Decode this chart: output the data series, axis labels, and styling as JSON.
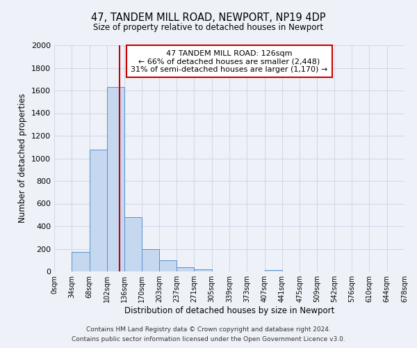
{
  "title": "47, TANDEM MILL ROAD, NEWPORT, NP19 4DP",
  "subtitle": "Size of property relative to detached houses in Newport",
  "xlabel": "Distribution of detached houses by size in Newport",
  "ylabel": "Number of detached properties",
  "bar_edges": [
    0,
    34,
    68,
    102,
    136,
    170,
    203,
    237,
    271,
    305,
    339,
    373,
    407,
    441,
    475,
    509,
    542,
    576,
    610,
    644,
    678
  ],
  "bar_values": [
    0,
    170,
    1080,
    1630,
    480,
    200,
    100,
    35,
    20,
    0,
    0,
    0,
    15,
    0,
    0,
    0,
    0,
    0,
    0,
    0
  ],
  "bar_color": "#c5d8f0",
  "bar_edge_color": "#5b8fc9",
  "property_line_x": 126,
  "property_line_color": "#cc0000",
  "ylim": [
    0,
    2000
  ],
  "yticks": [
    0,
    200,
    400,
    600,
    800,
    1000,
    1200,
    1400,
    1600,
    1800,
    2000
  ],
  "xtick_labels": [
    "0sqm",
    "34sqm",
    "68sqm",
    "102sqm",
    "136sqm",
    "170sqm",
    "203sqm",
    "237sqm",
    "271sqm",
    "305sqm",
    "339sqm",
    "373sqm",
    "407sqm",
    "441sqm",
    "475sqm",
    "509sqm",
    "542sqm",
    "576sqm",
    "610sqm",
    "644sqm",
    "678sqm"
  ],
  "annotation_line1": "47 TANDEM MILL ROAD: 126sqm",
  "annotation_line2": "← 66% of detached houses are smaller (2,448)",
  "annotation_line3": "31% of semi-detached houses are larger (1,170) →",
  "annotation_box_color": "#ffffff",
  "annotation_border_color": "#cc0000",
  "grid_color": "#d0d8e8",
  "bg_color": "#eef2f8",
  "footnote1": "Contains HM Land Registry data © Crown copyright and database right 2024.",
  "footnote2": "Contains public sector information licensed under the Open Government Licence v3.0."
}
